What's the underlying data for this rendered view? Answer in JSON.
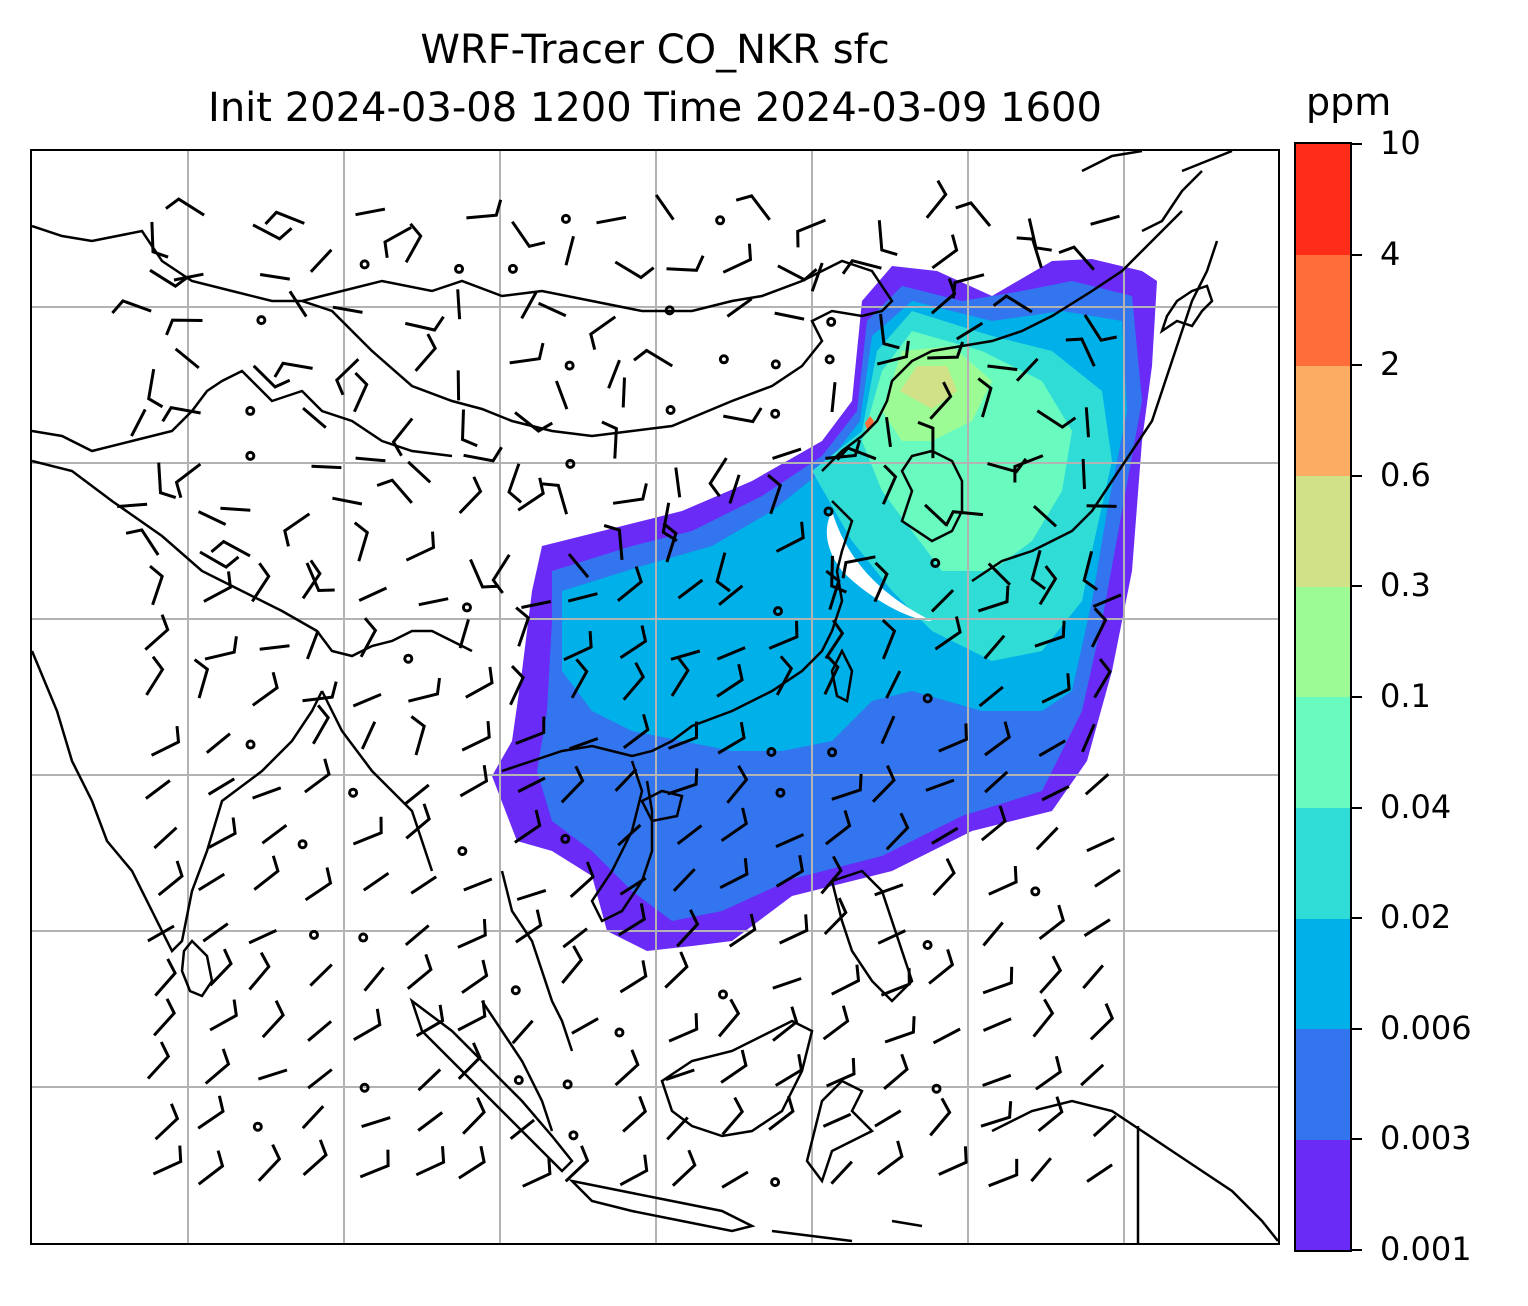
{
  "title": {
    "line1": "WRF-Tracer CO_NKR sfc",
    "line2": "Init 2024-03-08 1200 Time 2024-03-09 1600"
  },
  "colorbar": {
    "units": "ppm",
    "levels": [
      "0.001",
      "0.003",
      "0.006",
      "0.02",
      "0.04",
      "0.1",
      "0.3",
      "0.6",
      "2",
      "4",
      "10"
    ],
    "colors": [
      "#6a2bf7",
      "#3275ef",
      "#00b0e8",
      "#2fdcd6",
      "#69fac0",
      "#9cfb95",
      "#d0e187",
      "#fcac63",
      "#ff6e3a",
      "#ff2c1a"
    ]
  },
  "map": {
    "gridlines": true,
    "features": [
      "coastlines",
      "country-borders",
      "wind-barbs",
      "tracer-concentration-fill"
    ]
  }
}
